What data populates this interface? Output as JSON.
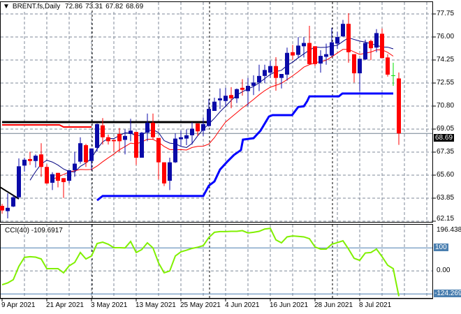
{
  "header": {
    "symbol": "BRENT.fs,Daily",
    "open": "72.86",
    "high": "73.31",
    "low": "67.82",
    "close": "68.69"
  },
  "colors": {
    "bull": "#0a0aa8",
    "bear": "#ff0000",
    "doji": "#00e000",
    "ma_fast": "#000080",
    "ma_slow": "#ff0000",
    "support": "#0000ff",
    "cci": "#80f000",
    "grid": "#7f8a99",
    "level": "#4a7fb0"
  },
  "price_axis": {
    "ticks": [
      "77.75",
      "76.00",
      "74.25",
      "72.55",
      "70.80",
      "69.05",
      "67.35",
      "65.60",
      "63.85",
      "62.15"
    ],
    "current": "68.69"
  },
  "cci": {
    "label": "CCI(40) -109.6917",
    "axis": {
      "top": "196.4386",
      "level_100": "100",
      "zero": "0.00",
      "bottom": "-124.269"
    },
    "values": [
      -60,
      -52,
      -38,
      20,
      59,
      62,
      60,
      52,
      10,
      10,
      10,
      -8,
      22,
      37,
      80,
      52,
      65,
      119,
      125,
      116,
      101,
      101,
      100,
      128,
      80,
      93,
      122,
      100,
      35,
      -8,
      0,
      65,
      83,
      90,
      98,
      103,
      110,
      145,
      168,
      171,
      171,
      172,
      172,
      175,
      165,
      168,
      172,
      182,
      185,
      135,
      122,
      148,
      152,
      150,
      148,
      140,
      104,
      95,
      95,
      116,
      123,
      131,
      95,
      55,
      46,
      78,
      80,
      95,
      62,
      25,
      10,
      -109.69
    ]
  },
  "date_labels": [
    "9 Apr 2021",
    "21 Apr 2021",
    "3 May 2021",
    "13 May 2021",
    "25 May 2021",
    "4 Jun 2021",
    "16 Jun 2021",
    "28 Jun 2021",
    "8 Jul 2021"
  ],
  "chart_data": {
    "type": "candlestick",
    "ylim": [
      62.15,
      77.75
    ],
    "ohlc": [
      [
        63.2,
        63.35,
        62.6,
        62.85
      ],
      [
        62.8,
        64.15,
        62.25,
        63.05
      ],
      [
        63.15,
        64.0,
        63.1,
        63.85
      ],
      [
        63.85,
        66.8,
        63.75,
        66.2
      ],
      [
        66.25,
        66.85,
        65.8,
        66.7
      ],
      [
        66.75,
        67.3,
        66.3,
        66.6
      ],
      [
        66.6,
        67.1,
        66.1,
        67.0
      ],
      [
        67.1,
        67.95,
        65.4,
        66.15
      ],
      [
        66.15,
        66.35,
        64.85,
        64.9
      ],
      [
        64.95,
        65.75,
        64.4,
        65.6
      ],
      [
        65.7,
        65.7,
        64.6,
        65.1
      ],
      [
        65.3,
        65.3,
        63.8,
        65.0
      ],
      [
        65.1,
        65.9,
        64.9,
        65.9
      ],
      [
        65.9,
        67.3,
        65.4,
        66.4
      ],
      [
        66.55,
        68.4,
        66.4,
        67.95
      ],
      [
        67.8,
        67.9,
        66.15,
        66.5
      ],
      [
        66.6,
        67.55,
        65.9,
        67.55
      ],
      [
        67.6,
        69.45,
        67.3,
        69.4
      ],
      [
        69.3,
        69.85,
        67.85,
        68.4
      ],
      [
        68.4,
        68.6,
        67.85,
        68.1
      ],
      [
        68.2,
        68.2,
        67.3,
        68.1
      ],
      [
        68.65,
        69.1,
        67.3,
        68.1
      ],
      [
        68.2,
        69.0,
        67.1,
        68.5
      ],
      [
        68.65,
        69.8,
        68.1,
        68.9
      ],
      [
        68.8,
        68.8,
        66.3,
        66.85
      ],
      [
        66.85,
        68.8,
        66.85,
        68.75
      ],
      [
        68.75,
        70.2,
        68.1,
        69.5
      ],
      [
        69.5,
        70.2,
        68.2,
        68.4
      ],
      [
        68.35,
        68.35,
        65.2,
        66.5
      ],
      [
        66.5,
        66.5,
        64.7,
        64.9
      ],
      [
        65.1,
        66.85,
        64.4,
        66.5
      ],
      [
        66.5,
        68.7,
        66.45,
        68.3
      ],
      [
        68.25,
        68.9,
        67.7,
        68.4
      ],
      [
        68.3,
        69.0,
        67.8,
        68.55
      ],
      [
        68.55,
        69.55,
        67.85,
        69.05
      ],
      [
        69.45,
        69.45,
        68.5,
        68.85
      ],
      [
        68.9,
        69.9,
        68.5,
        69.4
      ],
      [
        69.25,
        71.3,
        69.2,
        70.55
      ],
      [
        70.4,
        71.4,
        70.4,
        71.1
      ],
      [
        71.2,
        72.1,
        70.55,
        71.35
      ],
      [
        71.15,
        72.15,
        70.7,
        71.55
      ],
      [
        71.6,
        72.2,
        70.6,
        71.35
      ],
      [
        71.35,
        72.1,
        71.0,
        72.05
      ],
      [
        72.15,
        72.8,
        71.55,
        72.0
      ],
      [
        71.9,
        72.9,
        70.75,
        72.3
      ],
      [
        72.3,
        73.1,
        71.6,
        72.55
      ],
      [
        72.55,
        73.9,
        71.9,
        73.05
      ],
      [
        73.05,
        73.9,
        72.5,
        73.5
      ],
      [
        73.3,
        74.2,
        72.9,
        73.8
      ],
      [
        73.8,
        74.47,
        71.93,
        72.9
      ],
      [
        72.9,
        73.2,
        72.1,
        73.2
      ],
      [
        73.15,
        75.2,
        72.7,
        74.8
      ],
      [
        74.85,
        75.4,
        74.25,
        74.6
      ],
      [
        74.65,
        76.0,
        74.4,
        75.35
      ],
      [
        75.3,
        76.0,
        74.45,
        75.55
      ],
      [
        75.55,
        76.85,
        73.95,
        73.95
      ],
      [
        75.3,
        75.3,
        73.8,
        73.95
      ],
      [
        73.99,
        75.0,
        73.3,
        74.57
      ],
      [
        74.5,
        75.5,
        73.9,
        74.7
      ],
      [
        74.6,
        76.7,
        74.5,
        75.6
      ],
      [
        75.5,
        76.4,
        75.1,
        76.0
      ],
      [
        76.05,
        77.3,
        76.0,
        77.0
      ],
      [
        77.0,
        77.8,
        74.05,
        74.85
      ],
      [
        74.7,
        74.7,
        72.55,
        73.25
      ],
      [
        73.25,
        74.35,
        71.9,
        74.35
      ],
      [
        74.3,
        75.8,
        74.25,
        75.55
      ],
      [
        75.7,
        75.8,
        74.25,
        75.15
      ],
      [
        75.2,
        76.6,
        74.85,
        76.3
      ],
      [
        76.25,
        76.65,
        74.4,
        74.4
      ],
      [
        74.45,
        74.7,
        73.0,
        73.15
      ],
      [
        73.1,
        74.05,
        72.3,
        73.1
      ],
      [
        72.86,
        73.31,
        67.82,
        68.69
      ]
    ],
    "support_line": [
      [
        17,
        63.62
      ],
      [
        18,
        63.95
      ],
      [
        36,
        63.95
      ],
      [
        37,
        64.73
      ],
      [
        38,
        65.05
      ],
      [
        39,
        65.95
      ],
      [
        40.25,
        66.53
      ],
      [
        41.5,
        67.06
      ],
      [
        42.75,
        67.43
      ],
      [
        43.1,
        68.22
      ],
      [
        45,
        68.33
      ],
      [
        46.25,
        68.9
      ],
      [
        47.75,
        69.97
      ],
      [
        48.4,
        70.08
      ],
      [
        51.9,
        70.08
      ],
      [
        53,
        70.7
      ],
      [
        54,
        70.75
      ],
      [
        54.6,
        71.14
      ],
      [
        55,
        71.5
      ],
      [
        60.25,
        71.5
      ],
      [
        60.9,
        71.72
      ],
      [
        70,
        71.72
      ]
    ],
    "resistance_black": [
      [
        0,
        69.55
      ],
      [
        36.75,
        69.55
      ]
    ],
    "resistance_red": [
      [
        0,
        69.34
      ],
      [
        10.25,
        69.34
      ],
      [
        11,
        69.18
      ],
      [
        16,
        69.18
      ]
    ],
    "trend_black": [
      [
        -0.4,
        64.63
      ],
      [
        3,
        63.73
      ]
    ]
  }
}
